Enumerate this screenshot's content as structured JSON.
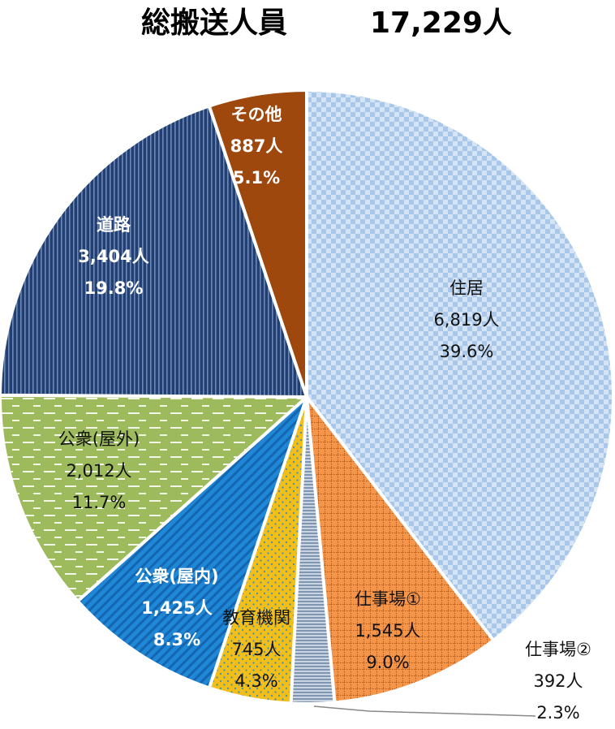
{
  "chart_data": {
    "type": "pie",
    "title": "総搬送人員",
    "total_label": "17,229人",
    "start_angle_deg": 0,
    "direction": "clockwise",
    "legend": "none",
    "slices": [
      {
        "name": "住居",
        "count_label": "6,819人",
        "pct_label": "39.6%",
        "value": 6819,
        "percent": 39.6,
        "color": "#A9C7E8",
        "pattern": "checker",
        "label_color": "#111111"
      },
      {
        "name": "仕事場①",
        "count_label": "1,545人",
        "pct_label": "9.0%",
        "value": 1545,
        "percent": 9.0,
        "color": "#F4954A",
        "pattern": "grid",
        "label_color": "#111111"
      },
      {
        "name": "仕事場②",
        "count_label": "392人",
        "pct_label": "2.3%",
        "value": 392,
        "percent": 2.3,
        "color": "#9EB3C9",
        "pattern": "hstripe",
        "label_color": "#111111"
      },
      {
        "name": "教育機関",
        "count_label": "745人",
        "pct_label": "4.3%",
        "value": 745,
        "percent": 4.3,
        "color": "#F2BE1A",
        "pattern": "dots",
        "label_color": "#111111"
      },
      {
        "name": "公衆(屋内)",
        "count_label": "1,425人",
        "pct_label": "8.3%",
        "value": 1425,
        "percent": 8.3,
        "color": "#1E88D6",
        "pattern": "diag",
        "label_color": "#ffffff"
      },
      {
        "name": "公衆(屋外)",
        "count_label": "2,012人",
        "pct_label": "11.7%",
        "value": 2012,
        "percent": 11.7,
        "color": "#9DBA5C",
        "pattern": "dash",
        "label_color": "#111111"
      },
      {
        "name": "道路",
        "count_label": "3,404人",
        "pct_label": "19.8%",
        "value": 3404,
        "percent": 19.8,
        "color": "#223F73",
        "pattern": "vstripe",
        "label_color": "#ffffff"
      },
      {
        "name": "その他",
        "count_label": "887人",
        "pct_label": "5.1%",
        "value": 887,
        "percent": 5.1,
        "color": "#9E480E",
        "pattern": "none",
        "label_color": "#ffffff"
      }
    ]
  }
}
